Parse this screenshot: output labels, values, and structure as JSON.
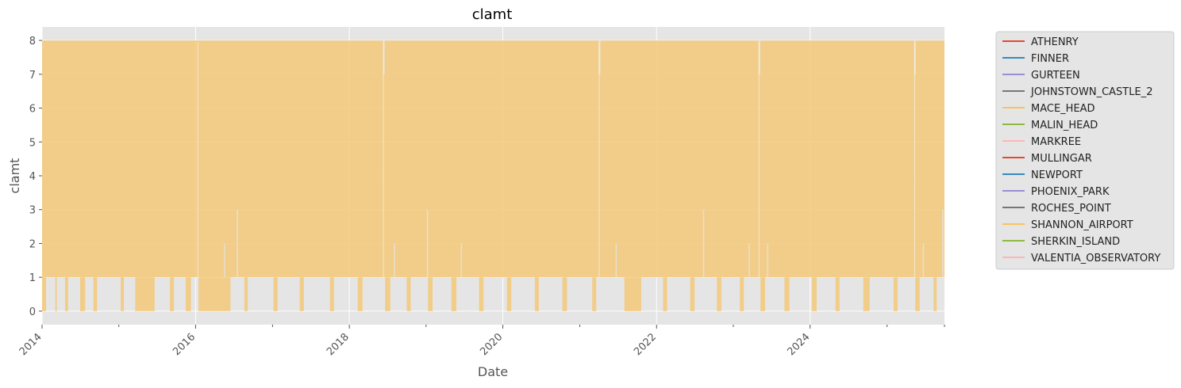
{
  "chart_data": {
    "type": "line",
    "title": "clamt",
    "xlabel": "Date",
    "ylabel": "clamt",
    "xlim": [
      "2014-01-01",
      "2025-10-01"
    ],
    "ylim": [
      -0.4,
      8.4
    ],
    "x_ticks": [
      "2014",
      "2016",
      "2018",
      "2020",
      "2022",
      "2024"
    ],
    "y_ticks": [
      0,
      1,
      2,
      3,
      4,
      5,
      6,
      7,
      8
    ],
    "grid": true,
    "legend_position": "outside-right",
    "value_range": [
      0,
      8
    ],
    "band": {
      "upper": [
        [
          "2018-06-10",
          7
        ],
        [
          "2021-04-01",
          7
        ],
        [
          "2023-05-01",
          7
        ],
        [
          "2025-05-10",
          7
        ]
      ],
      "lower_floor_default": 1,
      "lower_zero_periods": [
        [
          "2014-01-01",
          "2014-01-20"
        ],
        [
          "2014-03-05",
          "2014-03-12"
        ],
        [
          "2014-04-20",
          "2014-05-05"
        ],
        [
          "2014-07-01",
          "2014-07-25"
        ],
        [
          "2014-09-02",
          "2014-09-20"
        ],
        [
          "2015-01-10",
          "2015-01-25"
        ],
        [
          "2015-03-20",
          "2015-06-20"
        ],
        [
          "2015-09-01",
          "2015-09-20"
        ],
        [
          "2015-11-15",
          "2015-12-10"
        ],
        [
          "2016-01-15",
          "2016-06-15"
        ],
        [
          "2016-08-20",
          "2016-09-05"
        ],
        [
          "2017-01-05",
          "2017-01-25"
        ],
        [
          "2017-05-10",
          "2017-05-30"
        ],
        [
          "2017-10-01",
          "2017-10-20"
        ],
        [
          "2018-02-10",
          "2018-03-05"
        ],
        [
          "2018-06-20",
          "2018-07-15"
        ],
        [
          "2018-10-01",
          "2018-10-20"
        ],
        [
          "2019-01-10",
          "2019-02-01"
        ],
        [
          "2019-05-01",
          "2019-05-25"
        ],
        [
          "2019-09-10",
          "2019-10-01"
        ],
        [
          "2020-01-20",
          "2020-02-10"
        ],
        [
          "2020-06-01",
          "2020-06-20"
        ],
        [
          "2020-10-10",
          "2020-11-01"
        ],
        [
          "2021-03-01",
          "2021-03-20"
        ],
        [
          "2021-08-01",
          "2021-10-20"
        ],
        [
          "2022-02-01",
          "2022-02-20"
        ],
        [
          "2022-06-10",
          "2022-07-01"
        ],
        [
          "2022-10-15",
          "2022-11-05"
        ],
        [
          "2023-02-01",
          "2023-02-20"
        ],
        [
          "2023-05-10",
          "2023-06-01"
        ],
        [
          "2023-09-01",
          "2023-09-25"
        ],
        [
          "2024-01-10",
          "2024-02-01"
        ],
        [
          "2024-05-01",
          "2024-05-20"
        ],
        [
          "2024-09-10",
          "2024-10-10"
        ],
        [
          "2025-02-01",
          "2025-02-20"
        ],
        [
          "2025-05-15",
          "2025-06-05"
        ],
        [
          "2025-08-10",
          "2025-08-25"
        ]
      ],
      "lower_raised": [
        [
          "2016-05-15",
          2
        ],
        [
          "2016-07-15",
          3
        ],
        [
          "2018-08-01",
          2
        ],
        [
          "2019-01-05",
          3
        ],
        [
          "2019-06-15",
          2
        ],
        [
          "2021-06-20",
          2
        ],
        [
          "2022-08-10",
          3
        ],
        [
          "2023-03-15",
          2
        ],
        [
          "2023-06-10",
          2
        ],
        [
          "2025-06-20",
          2
        ],
        [
          "2025-09-20",
          3
        ]
      ],
      "gaps": [
        "2016-01-10",
        "2018-06-10",
        "2021-04-01",
        "2023-05-01",
        "2025-05-10"
      ]
    },
    "series": [
      {
        "name": "ATHENRY",
        "color": "#E24A33"
      },
      {
        "name": "FINNER",
        "color": "#348ABD"
      },
      {
        "name": "GURTEEN",
        "color": "#988ED5"
      },
      {
        "name": "JOHNSTOWN_CASTLE_2",
        "color": "#777777"
      },
      {
        "name": "MACE_HEAD",
        "color": "#FBC15E"
      },
      {
        "name": "MALIN_HEAD",
        "color": "#8EBA42"
      },
      {
        "name": "MARKREE",
        "color": "#FFB5B8"
      },
      {
        "name": "MULLINGAR",
        "color": "#E24A33"
      },
      {
        "name": "NEWPORT",
        "color": "#348ABD"
      },
      {
        "name": "PHOENIX_PARK",
        "color": "#988ED5"
      },
      {
        "name": "ROCHES_POINT",
        "color": "#777777"
      },
      {
        "name": "SHANNON_AIRPORT",
        "color": "#FBC15E"
      },
      {
        "name": "SHERKIN_ISLAND",
        "color": "#8EBA42"
      },
      {
        "name": "VALENTIA_OBSERVATORY",
        "color": "#FFB5B8"
      }
    ],
    "colors": {
      "axes_background": "#E5E5E5",
      "grid": "#FFFFFF",
      "fill": "#F2C97C",
      "text": "#555555",
      "title": "#000000"
    }
  }
}
